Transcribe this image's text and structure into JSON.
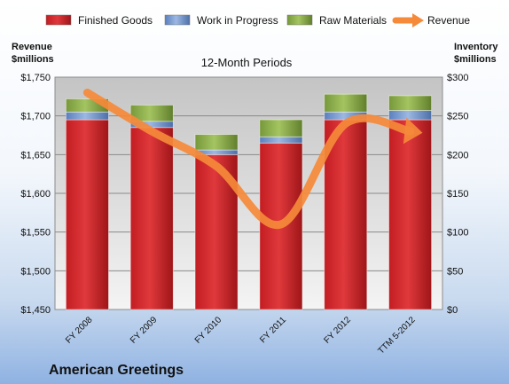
{
  "chart_data": {
    "type": "bar",
    "title": "12-Month Periods",
    "company": "American Greetings",
    "left_axis_label": [
      "Revenue",
      "$millions"
    ],
    "right_axis_label": [
      "Inventory",
      "$millions"
    ],
    "categories": [
      "FY 2008",
      "FY 2009",
      "FY 2010",
      "FY 2011",
      "FY 2012",
      "TTM 5-2012"
    ],
    "stacked": true,
    "left_axis": {
      "min": 1450,
      "max": 1750,
      "step": 50,
      "ticks": [
        "$1,450",
        "$1,500",
        "$1,550",
        "$1,600",
        "$1,650",
        "$1,700",
        "$1,750"
      ]
    },
    "right_axis": {
      "min": 0,
      "max": 300,
      "step": 50,
      "ticks": [
        "$0",
        "$50",
        "$100",
        "$150",
        "$200",
        "$250",
        "$300"
      ]
    },
    "series": [
      {
        "name": "Finished Goods",
        "kind": "bar",
        "axis": "right",
        "color": "#d0262a",
        "values": [
          245,
          235,
          200,
          215,
          245,
          245
        ]
      },
      {
        "name": "Work in Progress",
        "kind": "bar",
        "axis": "right",
        "color": "#6f93cf",
        "values": [
          10,
          8,
          6,
          8,
          10,
          12
        ]
      },
      {
        "name": "Raw Materials",
        "kind": "bar",
        "axis": "right",
        "color": "#8cb04a",
        "values": [
          17,
          21,
          20,
          22,
          23,
          19
        ]
      },
      {
        "name": "Revenue",
        "kind": "line",
        "axis": "left",
        "color": "#f58a3a",
        "values": [
          1730,
          1680,
          1635,
          1560,
          1690,
          1680
        ]
      }
    ],
    "grid": true,
    "legend": "top"
  }
}
